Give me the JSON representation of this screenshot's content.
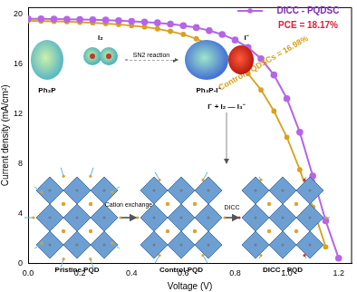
{
  "chart_data": {
    "type": "line",
    "x_label": "Voltage (V)",
    "y_label": "Current density (mA/cm²)",
    "x": [
      0,
      0.05,
      0.1,
      0.15,
      0.2,
      0.25,
      0.3,
      0.35,
      0.4,
      0.45,
      0.5,
      0.55,
      0.6,
      0.65,
      0.7,
      0.75,
      0.8,
      0.85,
      0.9,
      0.95,
      1.0,
      1.05,
      1.1,
      1.15,
      1.2
    ],
    "series": [
      {
        "name": "DICC - PQDSC",
        "color": "#b565e8",
        "marker": "circle",
        "line_style": "solid",
        "values": [
          19.6,
          19.6,
          19.58,
          19.57,
          19.55,
          19.52,
          19.5,
          19.45,
          19.4,
          19.35,
          19.28,
          19.18,
          19.05,
          18.9,
          18.65,
          18.35,
          17.9,
          17.3,
          16.4,
          15.1,
          13.2,
          10.5,
          7.0,
          3.4,
          0.4
        ]
      },
      {
        "name": "Control PQDSCs",
        "color": "#d9a11c",
        "marker": "circle",
        "line_style": "solid",
        "values": [
          19.45,
          19.42,
          19.4,
          19.37,
          19.33,
          19.28,
          19.22,
          19.15,
          19.05,
          18.95,
          18.8,
          18.6,
          18.35,
          18.0,
          17.55,
          16.95,
          16.2,
          15.2,
          13.9,
          12.2,
          10.1,
          7.5,
          4.5,
          1.3,
          null
        ]
      }
    ],
    "xlim": [
      0,
      1.25
    ],
    "xticks": [
      {
        "value": 0,
        "label": "0.0"
      },
      {
        "value": 0.2,
        "label": "0.2"
      },
      {
        "value": 0.4,
        "label": "0.4"
      },
      {
        "value": 0.6,
        "label": "0.6"
      },
      {
        "value": 0.8,
        "label": "0.8"
      },
      {
        "value": 1.0,
        "label": "1.0"
      },
      {
        "value": 1.2,
        "label": "1.2"
      }
    ],
    "ylim": [
      0,
      20.5
    ],
    "yticks": [
      0,
      4,
      8,
      12,
      16,
      20
    ],
    "grid": false,
    "legend": "upper right",
    "annotations": [
      "PCE = 18.17%",
      "Control PQDSCs = 16.98%"
    ],
    "inset": {
      "molecules": [
        "Ph₃P",
        "I₂",
        "Ph₃P-I⁻"
      ],
      "ion": "I⁻",
      "reaction": "SN2 reaction",
      "equilibrium": "I⁻ + I₂ — I₃⁻",
      "stages": [
        "Pristine PQD",
        "Control PQD",
        "DICC - PQD"
      ],
      "steps": [
        "Cation exchange",
        "DICC"
      ]
    }
  }
}
